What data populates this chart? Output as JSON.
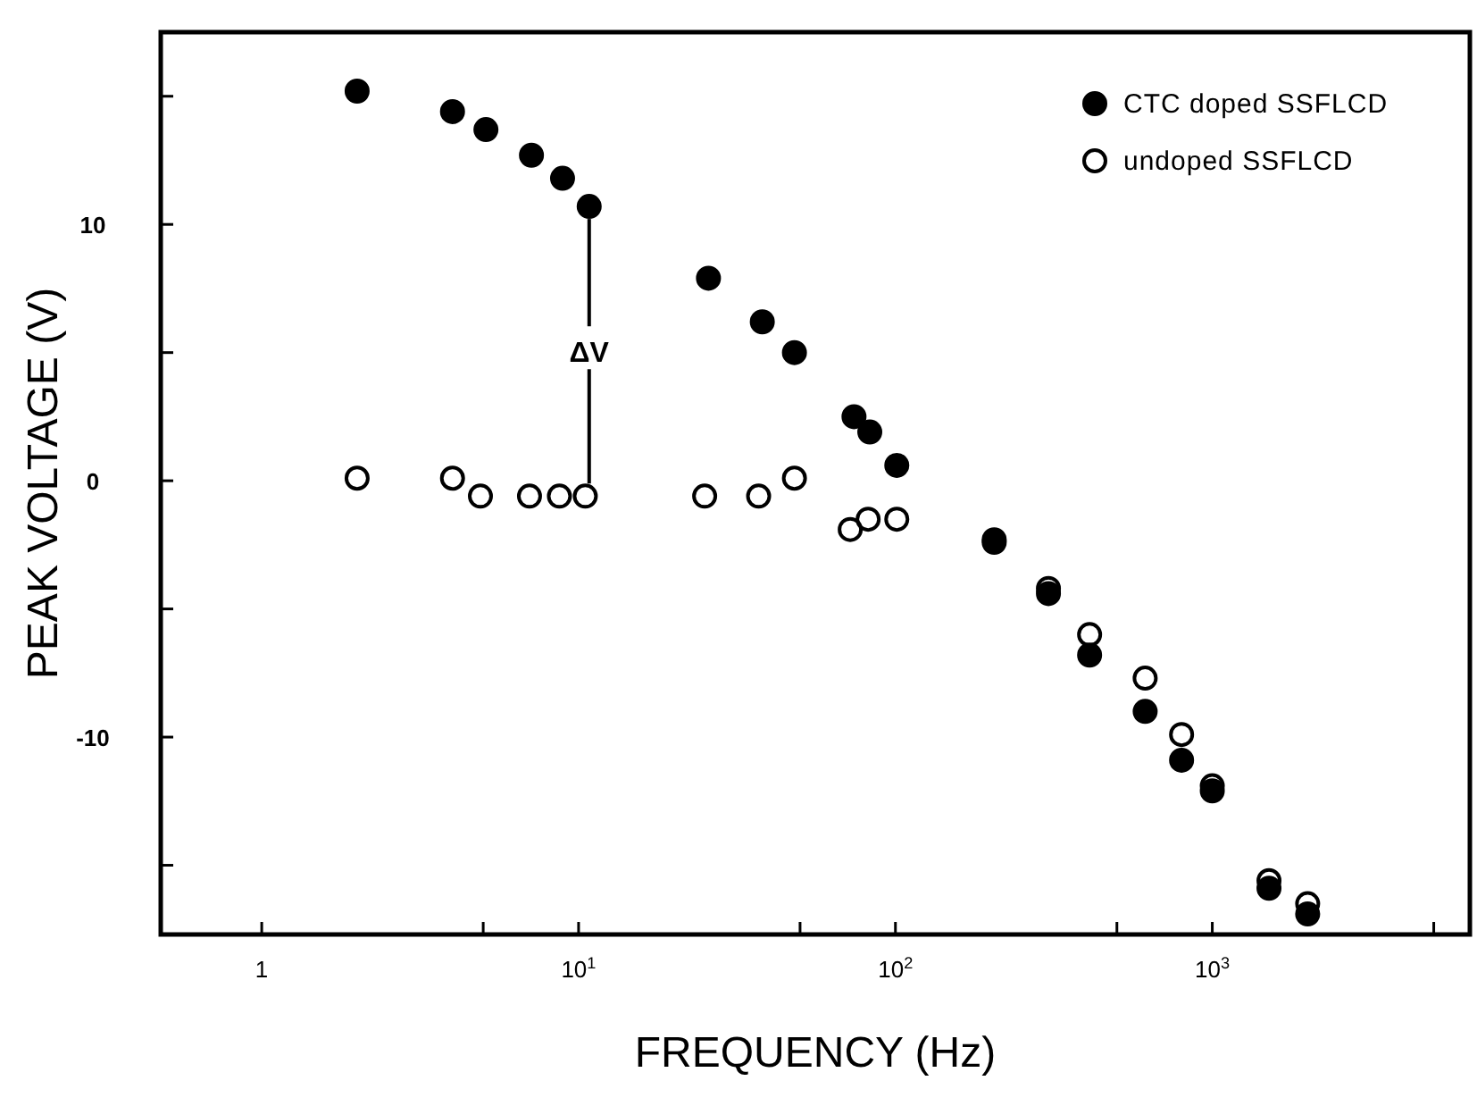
{
  "chart_data": {
    "type": "scatter",
    "xlabel": "FREQUENCY (Hz)",
    "ylabel": "PEAK VOLTAGE (V)",
    "log": "x",
    "xlim": [
      0.48,
      6500
    ],
    "ylim": [
      -17.7,
      17.5
    ],
    "xticks": [
      1,
      {
        "value": 5,
        "label": null
      },
      {
        "value": 10,
        "label": "10$^{1}$"
      },
      {
        "value": 50,
        "label": null
      },
      {
        "value": 100,
        "label": "10$^{2}$"
      },
      {
        "value": 500,
        "label": null
      },
      {
        "value": 1000,
        "label": "10$^{3}$"
      },
      {
        "value": 5000,
        "label": null
      }
    ],
    "yticks": [
      {
        "value": -15,
        "label": null
      },
      -10,
      {
        "value": -5,
        "label": null
      },
      0,
      {
        "value": 5,
        "label": null
      },
      10,
      {
        "value": 15,
        "label": null
      }
    ],
    "grid": false,
    "legend": "top right",
    "marker": "circle",
    "series": [
      {
        "name": "CTC doped SSFLCD",
        "color": "#000000",
        "x": [
          2.0,
          4.0,
          5.1,
          7.1,
          8.9,
          10.8,
          25.7,
          38,
          48,
          74,
          83,
          101,
          205,
          304,
          410,
          614,
          800,
          1000,
          1510,
          2000
        ],
        "values": [
          15.2,
          14.4,
          13.7,
          12.7,
          11.8,
          10.7,
          7.9,
          6.2,
          5.0,
          2.5,
          1.9,
          0.6,
          -2.4,
          -4.4,
          -6.8,
          -9.0,
          -10.9,
          -12.1,
          -15.9,
          -16.9
        ]
      },
      {
        "name": "undoped SSFLCD",
        "color": "#000000",
        "x": [
          2.0,
          4.0,
          4.9,
          7.0,
          8.7,
          10.5,
          25,
          37,
          48,
          72,
          82,
          101,
          205,
          304,
          410,
          614,
          800,
          1000,
          1510,
          2000
        ],
        "values": [
          0.1,
          0.1,
          -0.6,
          -0.6,
          -0.6,
          -0.6,
          -0.6,
          -0.6,
          0.1,
          -1.9,
          -1.5,
          -1.5,
          -2.3,
          -4.2,
          -6.0,
          -7.7,
          -9.9,
          -11.9,
          -15.6,
          -16.5
        ]
      }
    ],
    "annotations": [
      {
        "text": "ΔV",
        "x": 10.8,
        "y": 10.7
      }
    ]
  }
}
